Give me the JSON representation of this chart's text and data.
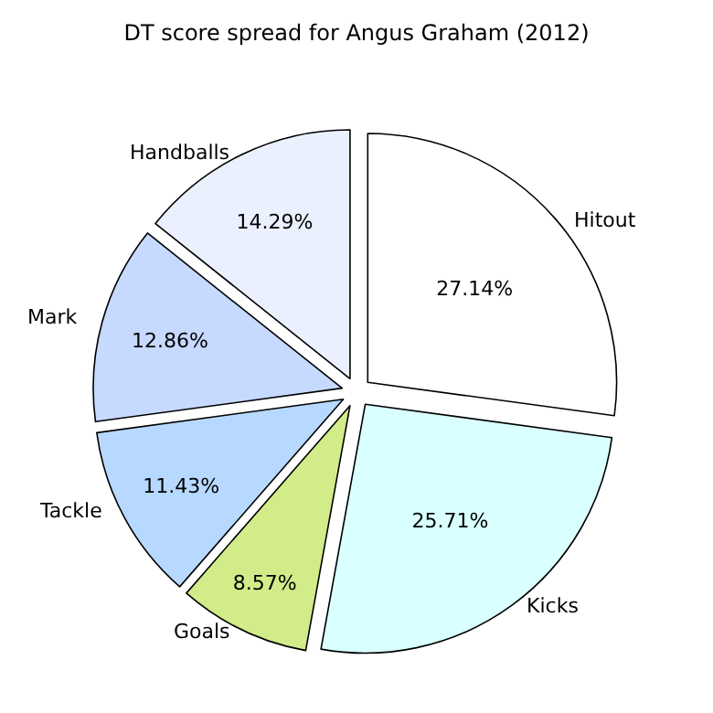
{
  "chart_data": {
    "type": "pie",
    "title": "DT score spread for Angus Graham (2012)",
    "categories": [
      "Hitout",
      "Kicks",
      "Goals",
      "Tackle",
      "Mark",
      "Handballs"
    ],
    "values": [
      27.14,
      25.71,
      8.57,
      11.43,
      12.86,
      14.29
    ],
    "colors": [
      "#ffffff",
      "#d9ffff",
      "#d2ec8a",
      "#b8d9ff",
      "#c6d9ff",
      "#ebf0ff"
    ],
    "value_labels": [
      "27.14%",
      "25.71%",
      "8.57%",
      "11.43%",
      "12.86%",
      "14.29%"
    ],
    "legend": false
  }
}
